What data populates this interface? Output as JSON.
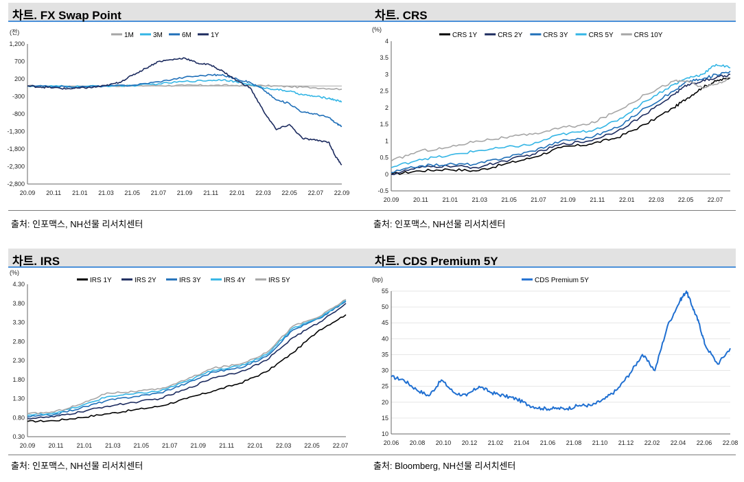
{
  "panels": {
    "fx": {
      "title": "차트. FX Swap Point",
      "source": "출처: 인포맥스, NH선물 리서치센터"
    },
    "crs": {
      "title": "차트. CRS",
      "source": "출처: 인포맥스, NH선물 리서치센터"
    },
    "irs": {
      "title": "차트. IRS",
      "source": "출처: 인포맥스, NH선물 리서치센터"
    },
    "cds": {
      "title": "차트. CDS Premium 5Y",
      "source": "출처: Bloomberg, NH선물 리서치센터"
    }
  },
  "chart_data": [
    {
      "id": "fx",
      "type": "line",
      "title": "차트. FX Swap Point",
      "yunit": "(전)",
      "ylim": [
        -2800,
        1200
      ],
      "yticks": [
        "1,200",
        "700",
        "200",
        "-300",
        "-800",
        "-1,300",
        "-1,800",
        "-2,300",
        "-2,800"
      ],
      "xticks": [
        "20.09",
        "20.11",
        "21.01",
        "21.03",
        "21.05",
        "21.07",
        "21.09",
        "21.11",
        "22.01",
        "22.03",
        "22.05",
        "22.07",
        "22.09"
      ],
      "xlim": [
        0,
        24
      ],
      "legend_placement": "top",
      "colors": {
        "1M": "#a6a6a6",
        "3M": "#33b5e5",
        "6M": "#1f6fb8",
        "1Y": "#1b2a5e"
      },
      "series": [
        {
          "name": "1M",
          "color": "#a6a6a6",
          "x": [
            0,
            2,
            4,
            6,
            8,
            10,
            12,
            14,
            16,
            18,
            20,
            22,
            24
          ],
          "y": [
            0,
            -5,
            -10,
            0,
            5,
            10,
            15,
            20,
            15,
            10,
            -20,
            -50,
            -90
          ]
        },
        {
          "name": "3M",
          "color": "#33b5e5",
          "x": [
            0,
            2,
            4,
            6,
            8,
            10,
            12,
            14,
            15,
            16,
            17,
            18,
            19,
            20,
            21,
            22,
            23,
            23.5,
            24
          ],
          "y": [
            0,
            -10,
            -20,
            0,
            10,
            60,
            130,
            160,
            180,
            110,
            40,
            -50,
            -100,
            -150,
            -250,
            -300,
            -350,
            -400,
            -450
          ]
        },
        {
          "name": "6M",
          "color": "#1f6fb8",
          "x": [
            0,
            2,
            4,
            6,
            8,
            10,
            12,
            14,
            15,
            16,
            17,
            18,
            19,
            20,
            21,
            22,
            23,
            23.5,
            24
          ],
          "y": [
            0,
            -20,
            -30,
            0,
            20,
            120,
            250,
            320,
            300,
            200,
            100,
            -100,
            -400,
            -500,
            -750,
            -800,
            -900,
            -1050,
            -1150
          ]
        },
        {
          "name": "1Y",
          "color": "#1b2a5e",
          "x": [
            0,
            1,
            2,
            3,
            4,
            5,
            6,
            7,
            8,
            9,
            10,
            11,
            12,
            13,
            14,
            15,
            16,
            17,
            18,
            19,
            20,
            21,
            22,
            23,
            23.5,
            24
          ],
          "y": [
            0,
            -30,
            -50,
            -80,
            -60,
            -40,
            10,
            100,
            300,
            500,
            700,
            750,
            800,
            650,
            600,
            400,
            150,
            -50,
            -700,
            -1250,
            -1100,
            -1500,
            -1550,
            -1600,
            -2000,
            -2250
          ]
        }
      ]
    },
    {
      "id": "crs",
      "type": "line",
      "title": "차트. CRS",
      "yunit": "(%)",
      "ylim": [
        -0.5,
        4
      ],
      "yticks": [
        "4",
        "3.5",
        "3",
        "2.5",
        "2",
        "1.5",
        "1",
        "0.5",
        "0",
        "-0.5"
      ],
      "xticks": [
        "20.09",
        "20.11",
        "21.01",
        "21.03",
        "21.05",
        "21.07",
        "21.09",
        "21.11",
        "22.01",
        "22.03",
        "22.05",
        "22.07"
      ],
      "xlim": [
        0,
        24
      ],
      "legend_placement": "top",
      "colors": {
        "CRS 1Y": "#000000",
        "CRS 2Y": "#1b2a5e",
        "CRS 3Y": "#1f6fb8",
        "CRS 5Y": "#33b5e5",
        "CRS 10Y": "#a6a6a6"
      },
      "series": [
        {
          "name": "CRS 1Y",
          "color": "#000000",
          "x": [
            0,
            2,
            4,
            6,
            8,
            10,
            12,
            14,
            16,
            18,
            20,
            21,
            22,
            23,
            24
          ],
          "y": [
            0,
            0.1,
            0.15,
            0.1,
            0.3,
            0.5,
            0.8,
            0.9,
            1.1,
            1.5,
            2.0,
            2.3,
            2.6,
            2.8,
            2.9
          ]
        },
        {
          "name": "CRS 2Y",
          "color": "#1b2a5e",
          "x": [
            0,
            2,
            4,
            6,
            8,
            10,
            12,
            14,
            16,
            18,
            20,
            21,
            22,
            23,
            24
          ],
          "y": [
            0,
            0.2,
            0.25,
            0.2,
            0.4,
            0.6,
            0.9,
            1.0,
            1.3,
            1.8,
            2.4,
            2.7,
            2.8,
            2.9,
            3.0
          ]
        },
        {
          "name": "CRS 3Y",
          "color": "#1f6fb8",
          "x": [
            0,
            2,
            4,
            6,
            8,
            10,
            12,
            14,
            16,
            18,
            20,
            21,
            22,
            23,
            24
          ],
          "y": [
            0.05,
            0.25,
            0.3,
            0.3,
            0.5,
            0.7,
            1.0,
            1.1,
            1.4,
            2.0,
            2.5,
            2.8,
            2.85,
            3.0,
            3.1
          ]
        },
        {
          "name": "CRS 5Y",
          "color": "#33b5e5",
          "x": [
            0,
            2,
            4,
            6,
            8,
            10,
            12,
            14,
            16,
            18,
            20,
            21,
            22,
            23,
            24
          ],
          "y": [
            0.2,
            0.45,
            0.55,
            0.7,
            0.8,
            0.9,
            1.2,
            1.3,
            1.6,
            2.2,
            2.7,
            2.9,
            3.0,
            3.3,
            3.2
          ]
        },
        {
          "name": "CRS 10Y",
          "color": "#a6a6a6",
          "x": [
            0,
            2,
            4,
            6,
            8,
            10,
            12,
            14,
            16,
            18,
            20,
            21,
            22,
            23,
            24
          ],
          "y": [
            0.4,
            0.7,
            0.8,
            1.0,
            1.1,
            1.2,
            1.4,
            1.5,
            1.9,
            2.4,
            2.8,
            2.8,
            2.6,
            2.7,
            2.9
          ]
        }
      ]
    },
    {
      "id": "irs",
      "type": "line",
      "title": "차트. IRS",
      "yunit": "(%)",
      "ylim": [
        0.3,
        4.3
      ],
      "yticks": [
        "4.30",
        "3.80",
        "3.30",
        "2.80",
        "2.30",
        "1.80",
        "1.30",
        "0.80",
        "0.30"
      ],
      "xticks": [
        "20.09",
        "20.11",
        "21.01",
        "21.03",
        "21.05",
        "21.07",
        "21.09",
        "21.11",
        "22.01",
        "22.03",
        "22.05",
        "22.07"
      ],
      "xlim": [
        0,
        24
      ],
      "legend_placement": "top",
      "colors": {
        "IRS 1Y": "#000000",
        "IRS 2Y": "#1b2a5e",
        "IRS 3Y": "#1f6fb8",
        "IRS 4Y": "#33b5e5",
        "IRS 5Y": "#a6a6a6"
      },
      "series": [
        {
          "name": "IRS 1Y",
          "color": "#000000",
          "x": [
            0,
            2,
            4,
            6,
            8,
            10,
            12,
            14,
            16,
            18,
            20,
            22,
            24
          ],
          "y": [
            0.7,
            0.72,
            0.8,
            0.9,
            1.0,
            1.1,
            1.3,
            1.5,
            1.7,
            2.0,
            2.5,
            3.1,
            3.5
          ]
        },
        {
          "name": "IRS 2Y",
          "color": "#1b2a5e",
          "x": [
            0,
            2,
            4,
            6,
            8,
            10,
            12,
            14,
            16,
            18,
            20,
            22,
            24
          ],
          "y": [
            0.78,
            0.82,
            0.95,
            1.1,
            1.2,
            1.3,
            1.55,
            1.85,
            2.0,
            2.3,
            2.9,
            3.3,
            3.8
          ]
        },
        {
          "name": "IRS 3Y",
          "color": "#1f6fb8",
          "x": [
            0,
            2,
            4,
            6,
            8,
            10,
            12,
            14,
            16,
            18,
            20,
            22,
            24
          ],
          "y": [
            0.82,
            0.88,
            1.05,
            1.25,
            1.35,
            1.45,
            1.7,
            2.0,
            2.1,
            2.4,
            3.1,
            3.4,
            3.85
          ]
        },
        {
          "name": "IRS 4Y",
          "color": "#33b5e5",
          "x": [
            0,
            2,
            4,
            6,
            8,
            10,
            12,
            14,
            16,
            18,
            20,
            22,
            24
          ],
          "y": [
            0.86,
            0.92,
            1.1,
            1.35,
            1.42,
            1.5,
            1.75,
            2.05,
            2.15,
            2.45,
            3.15,
            3.42,
            3.88
          ]
        },
        {
          "name": "IRS 5Y",
          "color": "#a6a6a6",
          "x": [
            0,
            2,
            4,
            6,
            8,
            10,
            12,
            14,
            16,
            18,
            20,
            22,
            24
          ],
          "y": [
            0.9,
            0.95,
            1.15,
            1.45,
            1.48,
            1.55,
            1.8,
            2.1,
            2.2,
            2.5,
            3.2,
            3.45,
            3.9
          ]
        }
      ]
    },
    {
      "id": "cds",
      "type": "line",
      "title": "차트. CDS Premium 5Y",
      "yunit": "(bp)",
      "ylim": [
        10,
        55
      ],
      "yticks": [
        "55",
        "50",
        "45",
        "40",
        "35",
        "30",
        "25",
        "20",
        "15",
        "10"
      ],
      "xticks": [
        "20.06",
        "20.08",
        "20.10",
        "20.12",
        "21.02",
        "21.04",
        "21.06",
        "21.08",
        "21.10",
        "21.12",
        "22.02",
        "22.04",
        "22.06",
        "22.08"
      ],
      "xlim": [
        0,
        27
      ],
      "legend_placement": "top",
      "colors": {
        "CDS Premium 5Y": "#1f6fd1"
      },
      "series": [
        {
          "name": "CDS Premium 5Y",
          "color": "#1f6fd1",
          "x": [
            0,
            1,
            2,
            3,
            4,
            5,
            6,
            7,
            8,
            9,
            10,
            11,
            12,
            13,
            14,
            15,
            16,
            17,
            18,
            19,
            20,
            21,
            22,
            23,
            23.5,
            24,
            24.5,
            25,
            26,
            27
          ],
          "y": [
            28,
            27,
            24,
            22,
            27,
            23,
            22,
            25,
            23,
            22,
            21,
            19,
            18,
            18,
            18,
            19,
            19,
            21,
            24,
            29,
            35,
            30,
            44,
            52,
            55,
            50,
            45,
            38,
            32,
            37
          ]
        }
      ]
    }
  ]
}
